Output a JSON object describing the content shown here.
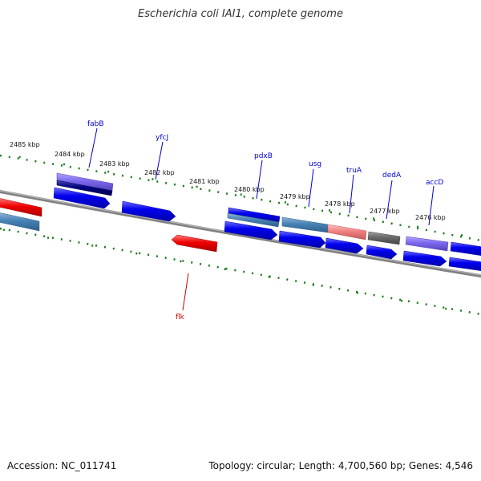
{
  "title": "Escherichia coli IAI1, complete genome",
  "accession": "Accession: NC_011741",
  "summary": "Topology: circular; Length: 4,700,560 bp; Genes: 4,546",
  "kbp_labels": [
    "2485 kbp",
    "2484 kbp",
    "2483 kbp",
    "2482 kbp",
    "2481 kbp",
    "2480 kbp",
    "2479 kbp",
    "2478 kbp",
    "2477 kbp",
    "2476 kbp"
  ],
  "gene_labels": [
    "fabB",
    "yfcJ",
    "pdxB",
    "usg",
    "truA",
    "dedA",
    "accD",
    "flk"
  ],
  "colors": {
    "backbone": "#808080",
    "tick_green": "#1a7a1a",
    "gene_blue": "#0000ee",
    "gene_steel": "#4682b4",
    "gene_red": "#ee0000",
    "gene_salmon": "#f08080",
    "gene_gray": "#696969",
    "gene_purple": "#7b68ee",
    "gene_navy": "#000080",
    "label_blue": "#0000cc",
    "label_red": "#cc0000"
  }
}
